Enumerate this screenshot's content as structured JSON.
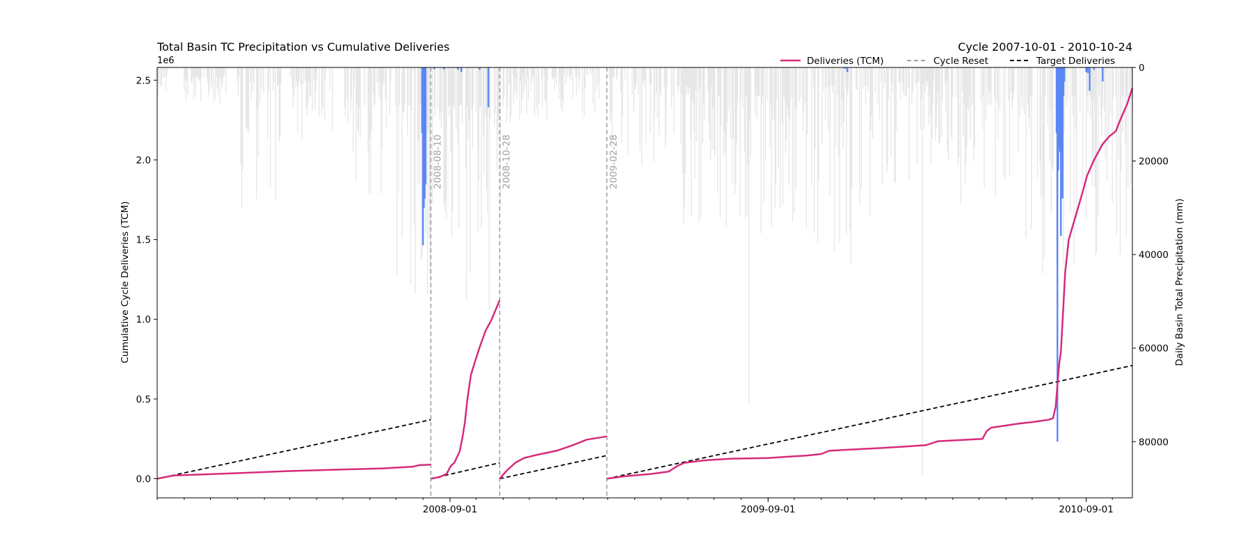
{
  "chart_data": {
    "type": "line",
    "title": "Total Basin TC Precipitation vs Cumulative Deliveries",
    "subtitle": "Cycle 2007-10-01 - 2010-10-24",
    "ylabel": "Cumulative Cycle Deliveries (TCM)",
    "y2label": "Daily Basin Total Precipitation (mm)",
    "y_offset_label": "1e6",
    "xlim": [
      "2007-10-01",
      "2010-10-24"
    ],
    "ylim": [
      -0.12,
      2.58
    ],
    "y2lim": [
      0,
      92000
    ],
    "y2_inverted": true,
    "xticks": [
      "2008-09-01",
      "2009-09-01",
      "2010-09-01"
    ],
    "yticks": [
      "0.0",
      "0.5",
      "1.0",
      "1.5",
      "2.0",
      "2.5"
    ],
    "y2ticks": [
      "0",
      "20000",
      "40000",
      "60000",
      "80000"
    ],
    "legend_position": "top-right",
    "legend": [
      {
        "label": "Deliveries (TCM)",
        "color": "#d62a7b",
        "style": "solid"
      },
      {
        "label": "Cycle Reset",
        "color": "#a0a0a0",
        "style": "dashed"
      },
      {
        "label": "Target Deliveries",
        "color": "#000000",
        "style": "dashed"
      }
    ],
    "cycle_resets": [
      {
        "date": "2008-08-10",
        "label": "2008-08-10"
      },
      {
        "date": "2008-10-28",
        "label": "2008-10-28"
      },
      {
        "date": "2009-02-28",
        "label": "2009-02-28"
      }
    ],
    "series": [
      {
        "name": "Deliveries (TCM)",
        "color": "#d62a7b",
        "segments": [
          [
            [
              "2007-10-01",
              0.0
            ],
            [
              "2007-10-20",
              0.02
            ],
            [
              "2008-01-01",
              0.035
            ],
            [
              "2008-03-01",
              0.048
            ],
            [
              "2008-05-01",
              0.058
            ],
            [
              "2008-06-15",
              0.064
            ],
            [
              "2008-07-20",
              0.075
            ],
            [
              "2008-07-28",
              0.085
            ],
            [
              "2008-08-10",
              0.088
            ]
          ],
          [
            [
              "2008-08-10",
              0.0
            ],
            [
              "2008-08-20",
              0.01
            ],
            [
              "2008-08-28",
              0.03
            ],
            [
              "2008-09-02",
              0.08
            ],
            [
              "2008-09-06",
              0.1
            ],
            [
              "2008-09-12",
              0.17
            ],
            [
              "2008-09-15",
              0.25
            ],
            [
              "2008-09-18",
              0.35
            ],
            [
              "2008-09-21",
              0.5
            ],
            [
              "2008-09-25",
              0.65
            ],
            [
              "2008-09-30",
              0.74
            ],
            [
              "2008-10-06",
              0.84
            ],
            [
              "2008-10-12",
              0.93
            ],
            [
              "2008-10-18",
              0.99
            ],
            [
              "2008-10-28",
              1.12
            ]
          ],
          [
            [
              "2008-10-28",
              0.0
            ],
            [
              "2008-11-05",
              0.05
            ],
            [
              "2008-11-15",
              0.1
            ],
            [
              "2008-11-25",
              0.13
            ],
            [
              "2008-12-10",
              0.15
            ],
            [
              "2009-01-01",
              0.175
            ],
            [
              "2009-01-20",
              0.21
            ],
            [
              "2009-02-05",
              0.245
            ],
            [
              "2009-02-28",
              0.265
            ]
          ],
          [
            [
              "2009-02-28",
              0.0
            ],
            [
              "2009-03-20",
              0.015
            ],
            [
              "2009-04-20",
              0.03
            ],
            [
              "2009-05-10",
              0.045
            ],
            [
              "2009-05-20",
              0.08
            ],
            [
              "2009-05-28",
              0.1
            ],
            [
              "2009-06-20",
              0.115
            ],
            [
              "2009-07-20",
              0.125
            ],
            [
              "2009-09-01",
              0.13
            ],
            [
              "2009-10-15",
              0.145
            ],
            [
              "2009-11-01",
              0.155
            ],
            [
              "2009-11-10",
              0.175
            ],
            [
              "2009-11-25",
              0.18
            ],
            [
              "2010-01-01",
              0.19
            ],
            [
              "2010-02-01",
              0.2
            ],
            [
              "2010-03-01",
              0.21
            ],
            [
              "2010-03-15",
              0.235
            ],
            [
              "2010-04-01",
              0.24
            ],
            [
              "2010-05-05",
              0.25
            ],
            [
              "2010-05-10",
              0.3
            ],
            [
              "2010-05-15",
              0.32
            ],
            [
              "2010-06-15",
              0.345
            ],
            [
              "2010-07-01",
              0.355
            ],
            [
              "2010-07-20",
              0.37
            ],
            [
              "2010-07-25",
              0.38
            ],
            [
              "2010-07-28",
              0.45
            ],
            [
              "2010-08-01",
              0.72
            ],
            [
              "2010-08-03",
              0.8
            ],
            [
              "2010-08-05",
              1.0
            ],
            [
              "2010-08-08",
              1.3
            ],
            [
              "2010-08-12",
              1.5
            ],
            [
              "2010-08-20",
              1.65
            ],
            [
              "2010-08-28",
              1.8
            ],
            [
              "2010-09-02",
              1.9
            ],
            [
              "2010-09-10",
              2.0
            ],
            [
              "2010-09-20",
              2.1
            ],
            [
              "2010-09-28",
              2.15
            ],
            [
              "2010-10-05",
              2.18
            ],
            [
              "2010-10-10",
              2.25
            ],
            [
              "2010-10-18",
              2.35
            ],
            [
              "2010-10-24",
              2.45
            ]
          ]
        ]
      },
      {
        "name": "Target Deliveries",
        "color": "#000000",
        "dash": true,
        "segments": [
          [
            [
              "2007-10-01",
              0.0
            ],
            [
              "2008-08-10",
              0.37
            ]
          ],
          [
            [
              "2008-08-10",
              0.0
            ],
            [
              "2008-10-28",
              0.1
            ]
          ],
          [
            [
              "2008-10-28",
              0.0
            ],
            [
              "2009-02-28",
              0.145
            ]
          ],
          [
            [
              "2009-02-28",
              0.0
            ],
            [
              "2010-10-24",
              0.71
            ]
          ]
        ]
      }
    ],
    "precip_highlight": {
      "color": "#5b87f5",
      "bars": [
        [
          "2008-07-31",
          14000
        ],
        [
          "2008-08-01",
          38000
        ],
        [
          "2008-08-02",
          30000
        ],
        [
          "2008-08-03",
          28000
        ],
        [
          "2008-08-04",
          25000
        ],
        [
          "2008-08-14",
          400
        ],
        [
          "2008-08-25",
          400
        ],
        [
          "2008-09-10",
          500
        ],
        [
          "2008-09-14",
          1000
        ],
        [
          "2008-10-05",
          500
        ],
        [
          "2008-10-15",
          8500
        ],
        [
          "2009-12-01",
          1000
        ],
        [
          "2009-11-28",
          300
        ],
        [
          "2010-07-29",
          14000
        ],
        [
          "2010-07-30",
          80000
        ],
        [
          "2010-07-31",
          22000
        ],
        [
          "2010-08-01",
          17000
        ],
        [
          "2010-08-02",
          18000
        ],
        [
          "2010-08-03",
          36000
        ],
        [
          "2010-08-04",
          19000
        ],
        [
          "2010-08-05",
          28000
        ],
        [
          "2010-08-06",
          6000
        ],
        [
          "2010-08-07",
          3000
        ],
        [
          "2010-09-01",
          1000
        ],
        [
          "2010-09-02",
          500
        ],
        [
          "2010-09-03",
          1200
        ],
        [
          "2010-09-05",
          5000
        ],
        [
          "2010-09-10",
          500
        ],
        [
          "2010-09-20",
          3000
        ]
      ]
    },
    "precip_background": {
      "color": "#e6e6e6",
      "clusters": [
        {
          "start": "2007-10-01",
          "end": "2007-10-12",
          "base": 2000,
          "peak": 6000
        },
        {
          "start": "2007-11-01",
          "end": "2007-12-20",
          "base": 2000,
          "peak": 8000
        },
        {
          "start": "2008-01-01",
          "end": "2008-02-20",
          "base": 2000,
          "peak": 30000
        },
        {
          "start": "2008-03-01",
          "end": "2008-04-20",
          "base": 2000,
          "peak": 16000
        },
        {
          "start": "2008-05-01",
          "end": "2008-06-25",
          "base": 3000,
          "peak": 28000
        },
        {
          "start": "2008-06-25",
          "end": "2008-10-31",
          "base": 8000,
          "peak": 52000
        },
        {
          "start": "2008-11-01",
          "end": "2009-02-20",
          "base": 1500,
          "peak": 12000
        },
        {
          "start": "2009-03-01",
          "end": "2009-04-30",
          "base": 2000,
          "peak": 22000
        },
        {
          "start": "2009-05-01",
          "end": "2009-06-30",
          "base": 4000,
          "peak": 36000
        },
        {
          "start": "2009-07-01",
          "end": "2009-10-20",
          "base": 6000,
          "peak": 38000
        },
        {
          "start": "2009-10-20",
          "end": "2009-12-31",
          "base": 4000,
          "peak": 42000
        },
        {
          "start": "2010-01-01",
          "end": "2010-03-31",
          "base": 3000,
          "peak": 26000
        },
        {
          "start": "2010-04-01",
          "end": "2010-06-15",
          "base": 5000,
          "peak": 30000
        },
        {
          "start": "2010-06-15",
          "end": "2010-10-24",
          "base": 6000,
          "peak": 45000
        }
      ],
      "spikes": [
        [
          "2010-02-25",
          87000
        ],
        [
          "2009-08-10",
          72000
        ],
        [
          "2009-12-05",
          42000
        ],
        [
          "2009-07-15",
          34000
        ],
        [
          "2008-09-20",
          50000
        ]
      ]
    }
  }
}
